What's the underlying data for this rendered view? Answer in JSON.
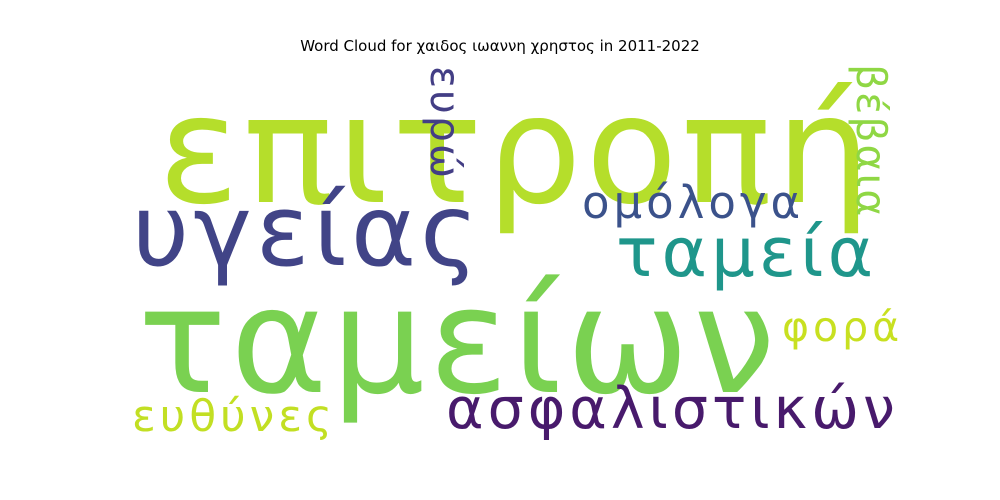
{
  "chart_data": {
    "type": "wordcloud",
    "title": "Word Cloud for χαιδος ιωαννη χρηστος in 2011-2022",
    "words": [
      {
        "text": "επιτροπή",
        "weight": 1.0,
        "color": "#b5de2b"
      },
      {
        "text": "ταμείων",
        "weight": 0.98,
        "color": "#7ad151"
      },
      {
        "text": "υγείας",
        "weight": 0.66,
        "color": "#414487"
      },
      {
        "text": "ταμεία",
        "weight": 0.46,
        "color": "#1f968b"
      },
      {
        "text": "ασφαλιστικών",
        "weight": 0.38,
        "color": "#481a6c"
      },
      {
        "text": "ομόλογα",
        "weight": 0.3,
        "color": "#3b528b"
      },
      {
        "text": "ευθύνες",
        "weight": 0.29,
        "color": "#c2df23"
      },
      {
        "text": "ευρώ",
        "weight": 0.27,
        "color": "#433e85"
      },
      {
        "text": "βέβαια",
        "weight": 0.27,
        "color": "#8fd744"
      },
      {
        "text": "φορά",
        "weight": 0.27,
        "color": "#c8e020"
      }
    ]
  }
}
